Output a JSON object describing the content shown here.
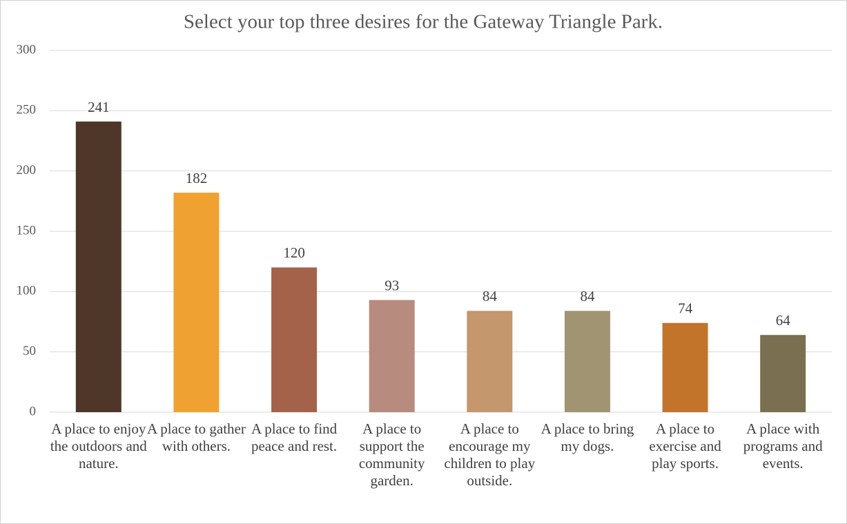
{
  "chart_data": {
    "type": "bar",
    "title": "Select your top three desires for the Gateway Triangle Park.",
    "categories": [
      "A place to enjoy the outdoors and nature.",
      "A place to gather with others.",
      "A place to find peace and rest.",
      "A place to support the community garden.",
      "A place to encourage my children to play outside.",
      "A place to bring my dogs.",
      "A place to exercise and play sports.",
      "A place with programs and events."
    ],
    "values": [
      241,
      182,
      120,
      93,
      84,
      84,
      74,
      64
    ],
    "colors": [
      "#4e3729",
      "#efa131",
      "#a4624b",
      "#b78b7d",
      "#c4976c",
      "#a09473",
      "#c3742b",
      "#7a6f51"
    ],
    "ylim": [
      0,
      300
    ],
    "yticks": [
      0,
      50,
      100,
      150,
      200,
      250,
      300
    ],
    "grid": true
  }
}
